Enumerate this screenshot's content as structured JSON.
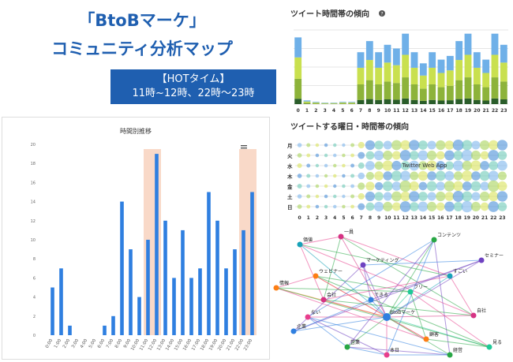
{
  "header": {
    "title_line1": "「BtoBマーケ」",
    "title_line2": "コミュニティ分析マップ",
    "hot_label": "【HOTタイム】",
    "hot_times": "11時~12時、22時～23時"
  },
  "colors": {
    "accent": "#1f5fb0",
    "bar": "#2f7fe0",
    "highlight": "#f9d9c8"
  },
  "chart_data": [
    {
      "type": "bar",
      "title": "時間別推移",
      "categories": [
        "0:00",
        "1:00",
        "2:00",
        "3:00",
        "4:00",
        "5:00",
        "6:00",
        "7:00",
        "8:00",
        "9:00",
        "10:00",
        "11:00",
        "12:00",
        "13:00",
        "14:00",
        "15:00",
        "16:00",
        "17:00",
        "18:00",
        "19:00",
        "20:00",
        "21:00",
        "22:00",
        "23:00"
      ],
      "values": [
        5,
        7,
        1,
        0,
        0,
        0,
        1,
        2,
        14,
        9,
        4,
        10,
        19,
        12,
        6,
        11,
        6,
        7,
        15,
        12,
        7,
        9,
        11,
        15
      ],
      "ylim": [
        0,
        20
      ],
      "yticks": [
        0,
        2,
        4,
        6,
        8,
        10,
        12,
        14,
        16,
        18,
        20
      ],
      "highlight_categories": [
        "11:00",
        "12:00",
        "22:00",
        "23:00"
      ],
      "menu_icon": "hamburger-icon"
    },
    {
      "type": "bar",
      "title": "ツイート時間帯の傾向",
      "info_icon": "question-icon",
      "categories": [
        "0",
        "1",
        "2",
        "3",
        "4",
        "5",
        "6",
        "7",
        "8",
        "9",
        "10",
        "11",
        "12",
        "13",
        "14",
        "15",
        "16",
        "17",
        "18",
        "19",
        "20",
        "21",
        "22",
        "23"
      ],
      "stacked": true,
      "totals": [
        90,
        5,
        3,
        2,
        2,
        3,
        3,
        70,
        85,
        70,
        80,
        75,
        95,
        70,
        55,
        70,
        60,
        65,
        85,
        95,
        70,
        60,
        95,
        80
      ]
    },
    {
      "type": "scatter",
      "title": "ツイートする曜日・時間帯の傾向",
      "rows": [
        "月",
        "火",
        "水",
        "木",
        "金",
        "土",
        "日"
      ],
      "x": [
        "0",
        "1",
        "2",
        "3",
        "4",
        "5",
        "6",
        "7",
        "8",
        "9",
        "10",
        "11",
        "12",
        "13",
        "14",
        "15",
        "16",
        "17",
        "18",
        "19",
        "20",
        "21",
        "22",
        "23"
      ],
      "annotation": "Twitter Web App"
    }
  ],
  "network": {
    "labels": [
      "BtoBマーケ",
      "一員",
      "コンテンツ",
      "ウェビナー",
      "マーケティング",
      "すごい",
      "ない",
      "フリー",
      "企業",
      "自社",
      "営業",
      "顧客",
      "セミナー",
      "価値",
      "本日",
      "見る",
      "できる",
      "会社",
      "経営",
      "情報"
    ]
  }
}
